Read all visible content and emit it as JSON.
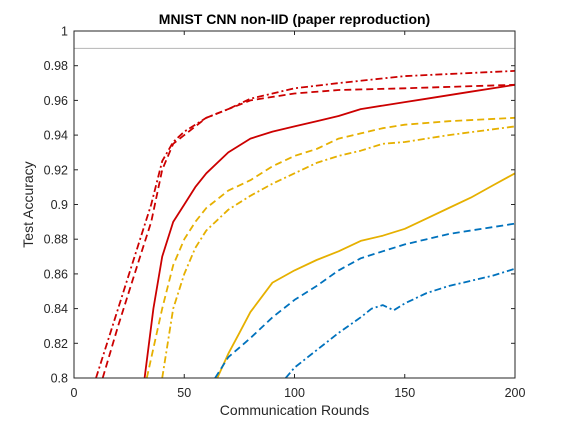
{
  "chart_data": {
    "type": "line",
    "title": "MNIST CNN non-IID (paper reproduction)",
    "xlabel": "Communication Rounds",
    "ylabel": "Test Accuracy",
    "xlim": [
      0,
      200
    ],
    "ylim": [
      0.8,
      1.0
    ],
    "xticks": [
      "0",
      "50",
      "100",
      "150",
      "200"
    ],
    "yticks": [
      "0.8",
      "0.82",
      "0.84",
      "0.86",
      "0.88",
      "0.9",
      "0.92",
      "0.94",
      "0.96",
      "0.98",
      "1"
    ],
    "grid": false,
    "colors": {
      "red": "#cc0000",
      "yellow": "#e6b000",
      "blue": "#0072bd",
      "reference": "#b4b4b4"
    },
    "reference_line": {
      "y": 0.99
    },
    "series": [
      {
        "color": "red",
        "style": "dashdot",
        "x": [
          10,
          20,
          30,
          35,
          40,
          45,
          50,
          60,
          70,
          80,
          90,
          100,
          120,
          150,
          200
        ],
        "y": [
          0.8,
          0.84,
          0.88,
          0.9,
          0.925,
          0.936,
          0.942,
          0.95,
          0.955,
          0.961,
          0.964,
          0.967,
          0.97,
          0.974,
          0.977
        ]
      },
      {
        "color": "red",
        "style": "dashed",
        "x": [
          13,
          20,
          30,
          35,
          40,
          45,
          50,
          60,
          70,
          80,
          90,
          100,
          120,
          150,
          200
        ],
        "y": [
          0.8,
          0.83,
          0.87,
          0.89,
          0.92,
          0.935,
          0.94,
          0.95,
          0.955,
          0.96,
          0.962,
          0.964,
          0.966,
          0.967,
          0.969
        ]
      },
      {
        "color": "red",
        "style": "solid",
        "x": [
          32,
          36,
          40,
          45,
          50,
          55,
          60,
          70,
          80,
          90,
          100,
          110,
          120,
          130,
          140,
          150,
          160,
          180,
          200
        ],
        "y": [
          0.8,
          0.84,
          0.87,
          0.89,
          0.9,
          0.91,
          0.918,
          0.93,
          0.938,
          0.942,
          0.945,
          0.948,
          0.951,
          0.955,
          0.957,
          0.959,
          0.961,
          0.965,
          0.969
        ]
      },
      {
        "color": "yellow",
        "style": "dashed",
        "x": [
          33,
          40,
          45,
          50,
          55,
          60,
          70,
          80,
          90,
          100,
          110,
          120,
          130,
          140,
          150,
          170,
          200
        ],
        "y": [
          0.8,
          0.84,
          0.865,
          0.88,
          0.89,
          0.898,
          0.908,
          0.914,
          0.922,
          0.928,
          0.932,
          0.938,
          0.941,
          0.944,
          0.946,
          0.948,
          0.95
        ]
      },
      {
        "color": "yellow",
        "style": "dashdot",
        "x": [
          40,
          45,
          50,
          55,
          60,
          70,
          80,
          90,
          100,
          110,
          120,
          130,
          140,
          150,
          170,
          200
        ],
        "y": [
          0.8,
          0.84,
          0.86,
          0.875,
          0.885,
          0.897,
          0.905,
          0.912,
          0.918,
          0.924,
          0.928,
          0.931,
          0.935,
          0.936,
          0.94,
          0.945
        ]
      },
      {
        "color": "yellow",
        "style": "solid",
        "x": [
          65,
          70,
          75,
          80,
          90,
          100,
          110,
          120,
          130,
          140,
          150,
          160,
          170,
          180,
          190,
          200
        ],
        "y": [
          0.8,
          0.814,
          0.826,
          0.838,
          0.855,
          0.862,
          0.868,
          0.873,
          0.879,
          0.882,
          0.886,
          0.892,
          0.898,
          0.904,
          0.911,
          0.918
        ]
      },
      {
        "color": "blue",
        "style": "dashed",
        "x": [
          64,
          70,
          80,
          90,
          100,
          110,
          120,
          130,
          140,
          150,
          160,
          170,
          180,
          190,
          200
        ],
        "y": [
          0.8,
          0.812,
          0.823,
          0.835,
          0.845,
          0.853,
          0.862,
          0.869,
          0.873,
          0.877,
          0.88,
          0.883,
          0.885,
          0.887,
          0.889
        ]
      },
      {
        "color": "blue",
        "style": "dashdot",
        "x": [
          96,
          100,
          110,
          120,
          130,
          135,
          140,
          145,
          150,
          160,
          170,
          180,
          190,
          200
        ],
        "y": [
          0.8,
          0.806,
          0.816,
          0.826,
          0.835,
          0.84,
          0.842,
          0.839,
          0.843,
          0.849,
          0.853,
          0.856,
          0.859,
          0.863
        ]
      }
    ]
  }
}
